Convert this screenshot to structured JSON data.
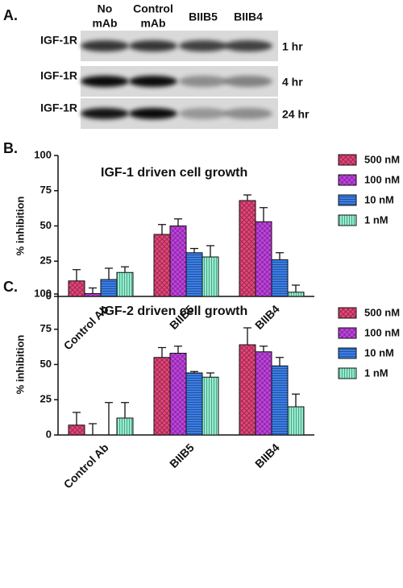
{
  "panel_a": {
    "label": "A.",
    "columns": [
      [
        "No",
        "mAb"
      ],
      [
        "Control",
        "mAb"
      ],
      [
        "BIIB5"
      ],
      [
        "BIIB4"
      ]
    ],
    "rows": [
      {
        "protein": "IGF-1R",
        "time": "1 hr"
      },
      {
        "protein": "IGF-1R",
        "time": "4 hr"
      },
      {
        "protein": "IGF-1R",
        "time": "24 hr"
      }
    ]
  },
  "chart_data": [
    {
      "type": "bar",
      "panel_label": "B.",
      "title": "IGF-1 driven cell growth",
      "y_label": "% inhibition",
      "categories": [
        "Control Ab",
        "BIIB5",
        "BIIB4"
      ],
      "ylim": [
        0,
        100
      ],
      "yticks": [
        0,
        25,
        50,
        75,
        100
      ],
      "series": [
        {
          "name": "500 nM",
          "color": "#e8457a",
          "values": [
            11,
            44,
            68
          ],
          "errors": [
            8,
            7,
            4
          ]
        },
        {
          "name": "100 nM",
          "color": "#c040e0",
          "values": [
            2,
            50,
            53
          ],
          "errors": [
            4,
            5,
            10
          ]
        },
        {
          "name": "10 nM",
          "color": "#3a7ee8",
          "values": [
            12,
            31,
            26
          ],
          "errors": [
            8,
            3,
            5
          ]
        },
        {
          "name": "1 nM",
          "color": "#8ff0d0",
          "values": [
            17,
            28,
            3
          ],
          "errors": [
            4,
            8,
            5
          ]
        }
      ]
    },
    {
      "type": "bar",
      "panel_label": "C.",
      "title": "IGF-2 driven cell growth",
      "y_label": "% inhibition",
      "categories": [
        "Control Ab",
        "BIIB5",
        "BIIB4"
      ],
      "ylim": [
        0,
        100
      ],
      "yticks": [
        0,
        25,
        50,
        75,
        100
      ],
      "series": [
        {
          "name": "500 nM",
          "color": "#e8457a",
          "values": [
            7,
            55,
            64
          ],
          "errors": [
            9,
            7,
            12
          ]
        },
        {
          "name": "100 nM",
          "color": "#c040e0",
          "values": [
            0,
            58,
            59
          ],
          "errors": [
            8,
            5,
            4
          ]
        },
        {
          "name": "10 nM",
          "color": "#3a7ee8",
          "values": [
            0,
            44,
            49
          ],
          "errors": [
            23,
            1,
            6
          ]
        },
        {
          "name": "1 nM",
          "color": "#8ff0d0",
          "values": [
            12,
            41,
            20
          ],
          "errors": [
            11,
            3,
            9
          ]
        }
      ]
    }
  ]
}
